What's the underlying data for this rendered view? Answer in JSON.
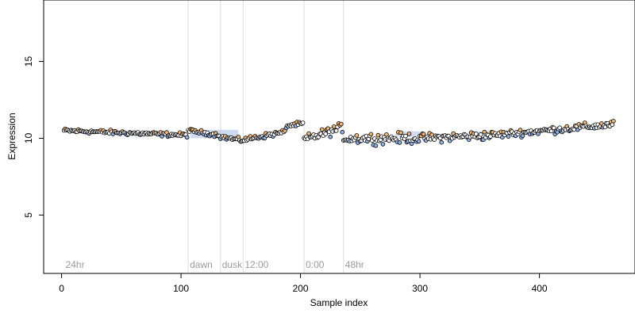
{
  "chart_data": {
    "type": "scatter",
    "title": "",
    "xlabel": "Sample index",
    "ylabel": "Expression",
    "xlim": [
      -15,
      480
    ],
    "ylim": [
      1.2,
      19
    ],
    "xticks": [
      0,
      100,
      200,
      300,
      400
    ],
    "yticks": [
      5,
      10,
      15
    ],
    "xtick_labels": [
      "0",
      "100",
      "200",
      "300",
      "400"
    ],
    "ytick_labels": [
      "5",
      "10",
      "15"
    ],
    "grid": false,
    "legend": "none",
    "colors": {
      "neutral": "#ffffff",
      "high": "#f3b774",
      "low": "#8fb1e6",
      "outline": "#000000",
      "band": "#a9bde6",
      "region_line": "#dcdcdc",
      "region_text": "#9a9a9a"
    },
    "regions": [
      {
        "label": "24hr",
        "x": 2
      },
      {
        "label": "dawn",
        "x": 106
      },
      {
        "label": "dusk",
        "x": 133
      },
      {
        "label": "12:00",
        "x": 152
      },
      {
        "label": "0:00",
        "x": 203
      },
      {
        "label": "48hr",
        "x": 236
      }
    ],
    "segments": [
      {
        "x": [
          2,
          105
        ],
        "y": [
          10.5,
          10.2
        ],
        "noise": 0.13
      },
      {
        "x": [
          106,
          132
        ],
        "y": [
          10.5,
          10.2
        ],
        "noise": 0.12
      },
      {
        "x": [
          133,
          151
        ],
        "y": [
          10.1,
          9.85
        ],
        "noise": 0.13
      },
      {
        "x": [
          152,
          187
        ],
        "y": [
          9.9,
          10.4
        ],
        "noise": 0.15
      },
      {
        "x": [
          188,
          202
        ],
        "y": [
          10.8,
          10.95
        ],
        "noise": 0.12
      },
      {
        "x": [
          203,
          235
        ],
        "y": [
          9.9,
          10.7
        ],
        "noise": 0.28
      },
      {
        "x": [
          236,
          300
        ],
        "y": [
          10.0,
          10.0
        ],
        "noise": 0.32
      },
      {
        "x": [
          301,
          360
        ],
        "y": [
          10.0,
          10.2
        ],
        "noise": 0.27
      },
      {
        "x": [
          361,
          462
        ],
        "y": [
          10.2,
          10.9
        ],
        "noise": 0.22
      }
    ],
    "bands": [
      {
        "x": [
          108,
          148
        ],
        "y": [
          10.0,
          10.55
        ]
      },
      {
        "x": [
          280,
          300
        ],
        "y": [
          10.1,
          10.45
        ]
      },
      {
        "x": [
          340,
          362
        ],
        "y": [
          10.1,
          10.45
        ]
      }
    ]
  }
}
